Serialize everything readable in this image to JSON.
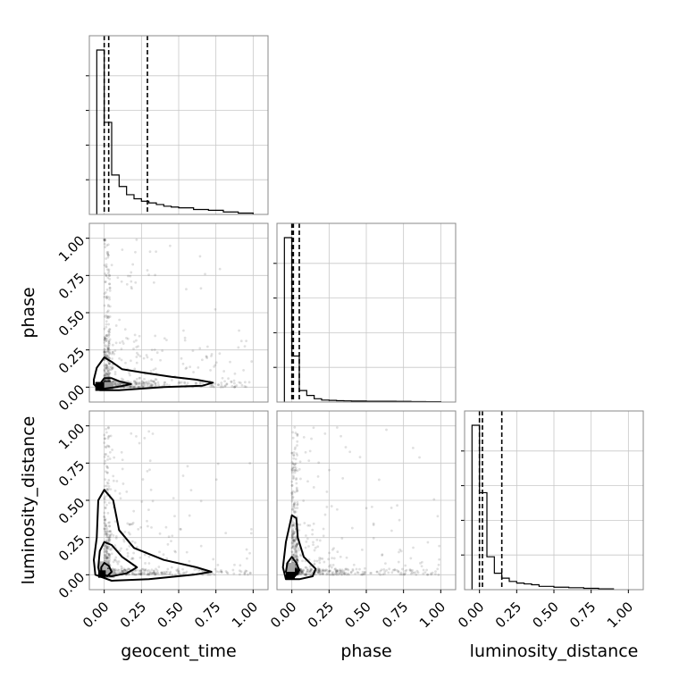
{
  "chart_data": {
    "type": "corner",
    "parameters": [
      "geocent_time",
      "phase",
      "luminosity_distance"
    ],
    "tick_labels": [
      "0.00",
      "0.25",
      "0.50",
      "0.75",
      "1.00"
    ],
    "tick_values": [
      0,
      0.25,
      0.5,
      0.75,
      1.0
    ],
    "axis_range": [
      -0.1,
      1.1
    ],
    "grid": true,
    "histograms": [
      {
        "parameter": "geocent_time",
        "bin_edges": [
          -0.05,
          0.0,
          0.05,
          0.1,
          0.15,
          0.2,
          0.25,
          0.3,
          0.35,
          0.4,
          0.45,
          0.5,
          0.6,
          0.7,
          0.8,
          0.9,
          1.0
        ],
        "counts": [
          1.0,
          0.56,
          0.24,
          0.17,
          0.12,
          0.095,
          0.08,
          0.07,
          0.06,
          0.05,
          0.045,
          0.04,
          0.03,
          0.025,
          0.015,
          0.008
        ],
        "quantile_lines": [
          0.0,
          0.03,
          0.29
        ]
      },
      {
        "parameter": "phase",
        "bin_edges": [
          -0.05,
          0.0,
          0.05,
          0.1,
          0.15,
          0.2,
          0.25,
          0.3,
          0.35,
          0.4,
          0.5,
          0.6,
          0.7,
          0.8,
          0.9,
          1.0
        ],
        "counts": [
          1.0,
          0.28,
          0.07,
          0.04,
          0.02,
          0.012,
          0.01,
          0.008,
          0.007,
          0.006,
          0.005,
          0.005,
          0.004,
          0.003,
          0.002
        ],
        "quantile_lines": [
          0.0,
          0.01,
          0.05
        ]
      },
      {
        "parameter": "luminosity_distance",
        "bin_edges": [
          -0.05,
          0.0,
          0.05,
          0.1,
          0.15,
          0.2,
          0.25,
          0.3,
          0.35,
          0.4,
          0.5,
          0.6,
          0.7,
          0.8,
          0.9
        ],
        "counts": [
          1.0,
          0.59,
          0.2,
          0.1,
          0.07,
          0.05,
          0.04,
          0.035,
          0.03,
          0.02,
          0.015,
          0.012,
          0.008,
          0.005
        ],
        "quantile_lines": [
          0.0,
          0.02,
          0.15
        ]
      }
    ],
    "scatter_panels": [
      {
        "x": "geocent_time",
        "y": "phase",
        "contours": [
          [
            [
              -0.07,
              0.05
            ],
            [
              -0.05,
              0.13
            ],
            [
              0.0,
              0.2
            ],
            [
              0.05,
              0.17
            ],
            [
              0.12,
              0.12
            ],
            [
              0.25,
              0.1
            ],
            [
              0.45,
              0.07
            ],
            [
              0.62,
              0.05
            ],
            [
              0.73,
              0.03
            ],
            [
              0.66,
              0.01
            ],
            [
              0.4,
              0.0
            ],
            [
              0.1,
              -0.02
            ],
            [
              -0.03,
              -0.02
            ],
            [
              -0.07,
              0.02
            ]
          ],
          [
            [
              -0.03,
              0.02
            ],
            [
              0.0,
              0.06
            ],
            [
              0.05,
              0.06
            ],
            [
              0.1,
              0.04
            ],
            [
              0.18,
              0.02
            ],
            [
              0.08,
              0.0
            ],
            [
              0.0,
              -0.01
            ],
            [
              -0.03,
              0.0
            ]
          ]
        ],
        "density_cells": [
          {
            "x": -0.03,
            "y": 0.005,
            "level": 1.0
          },
          {
            "x": 0.03,
            "y": 0.005,
            "level": 0.4
          }
        ]
      },
      {
        "x": "geocent_time",
        "y": "luminosity_distance",
        "contours": [
          [
            [
              -0.05,
              0.25
            ],
            [
              -0.04,
              0.5
            ],
            [
              0.0,
              0.57
            ],
            [
              0.06,
              0.5
            ],
            [
              0.1,
              0.3
            ],
            [
              0.2,
              0.18
            ],
            [
              0.4,
              0.1
            ],
            [
              0.62,
              0.05
            ],
            [
              0.72,
              0.02
            ],
            [
              0.6,
              0.0
            ],
            [
              0.3,
              -0.03
            ],
            [
              0.05,
              -0.04
            ],
            [
              -0.06,
              0.0
            ],
            [
              -0.07,
              0.1
            ]
          ],
          [
            [
              -0.04,
              0.05
            ],
            [
              -0.03,
              0.16
            ],
            [
              0.0,
              0.22
            ],
            [
              0.05,
              0.2
            ],
            [
              0.12,
              0.12
            ],
            [
              0.22,
              0.05
            ],
            [
              0.15,
              0.01
            ],
            [
              0.05,
              -0.01
            ],
            [
              -0.03,
              0.0
            ]
          ],
          [
            [
              -0.02,
              0.01
            ],
            [
              -0.02,
              0.05
            ],
            [
              0.0,
              0.08
            ],
            [
              0.03,
              0.06
            ],
            [
              0.05,
              0.02
            ],
            [
              0.02,
              -0.01
            ]
          ]
        ],
        "density_cells": [
          {
            "x": -0.01,
            "y": 0.01,
            "level": 1.0
          },
          {
            "x": 0.04,
            "y": 0.01,
            "level": 0.35
          },
          {
            "x": -0.01,
            "y": 0.06,
            "level": 0.3
          }
        ]
      },
      {
        "x": "phase",
        "y": "luminosity_distance",
        "contours": [
          [
            [
              -0.06,
              0.05
            ],
            [
              -0.04,
              0.22
            ],
            [
              0.0,
              0.4
            ],
            [
              0.03,
              0.38
            ],
            [
              0.04,
              0.25
            ],
            [
              0.08,
              0.12
            ],
            [
              0.16,
              0.04
            ],
            [
              0.14,
              -0.01
            ],
            [
              0.05,
              -0.03
            ],
            [
              -0.04,
              -0.03
            ]
          ],
          [
            [
              -0.04,
              0.02
            ],
            [
              -0.03,
              0.08
            ],
            [
              0.0,
              0.12
            ],
            [
              0.03,
              0.08
            ],
            [
              0.05,
              0.03
            ],
            [
              0.02,
              -0.01
            ],
            [
              -0.02,
              -0.01
            ]
          ]
        ],
        "density_cells": [
          {
            "x": -0.01,
            "y": 0.005,
            "level": 1.0
          },
          {
            "x": -0.01,
            "y": 0.05,
            "level": 0.35
          }
        ]
      }
    ]
  }
}
